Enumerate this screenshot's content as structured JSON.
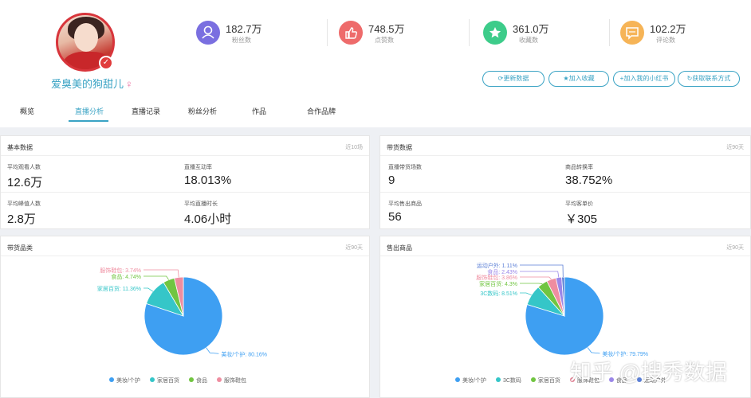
{
  "profile": {
    "name": "爱臭美的狗甜儿",
    "gender_icon": "♀",
    "verified_icon": "✓"
  },
  "stats": [
    {
      "value": "182.7万",
      "label": "粉丝数",
      "icon": "user-icon",
      "glyph": "⚇",
      "color": "#7a6fe0"
    },
    {
      "value": "748.5万",
      "label": "点赞数",
      "icon": "thumbs-up-icon",
      "glyph": "👍",
      "color": "#ee6b6b"
    },
    {
      "value": "361.0万",
      "label": "收藏数",
      "icon": "star-icon",
      "glyph": "★",
      "color": "#3dcc8a"
    },
    {
      "value": "102.2万",
      "label": "评论数",
      "icon": "comment-icon",
      "glyph": "▭",
      "color": "#f6b457"
    }
  ],
  "actions": [
    "⟳更新数据",
    "★加入收藏",
    "+加入我的小红书",
    "↻获取联系方式"
  ],
  "tabs": [
    "概览",
    "直播分析",
    "直播记录",
    "粉丝分析",
    "作品",
    "合作品牌"
  ],
  "basic": {
    "title": "基本数据",
    "range": "近10场",
    "metrics": [
      {
        "label": "平均观看人数",
        "value": "12.6万"
      },
      {
        "label": "直播互动率",
        "value": "18.013%"
      },
      {
        "label": "平均峰值人数",
        "value": "2.8万"
      },
      {
        "label": "平均直播时长",
        "value": "4.06小时"
      }
    ]
  },
  "sales": {
    "title": "带货数据",
    "range": "近90天",
    "metrics": [
      {
        "label": "直播带货场数",
        "value": "9"
      },
      {
        "label": "商品转换率",
        "value": "38.752%"
      },
      {
        "label": "平均售出商品",
        "value": "56"
      },
      {
        "label": "平均客单价",
        "value": "￥305"
      }
    ]
  },
  "category": {
    "title": "带货品类",
    "range": "近90天"
  },
  "sold": {
    "title": "售出商品",
    "range": "近90天"
  },
  "chart_data": [
    {
      "type": "pie",
      "slices": [
        {
          "name": "美妆/个护",
          "value": 80.16,
          "label": "美妆/个护: 80.16%",
          "color": "#3e9ff2"
        },
        {
          "name": "家居百货",
          "value": 11.36,
          "label": "家居百货: 11.36%",
          "color": "#35c6c8"
        },
        {
          "name": "食品",
          "value": 4.74,
          "label": "食品: 4.74%",
          "color": "#71c541"
        },
        {
          "name": "服饰鞋包",
          "value": 3.74,
          "label": "服饰鞋包: 3.74%",
          "color": "#ef8da0"
        }
      ],
      "legend": [
        "美妆/个护",
        "家居百货",
        "食品",
        "服饰鞋包"
      ]
    },
    {
      "type": "pie",
      "slices": [
        {
          "name": "美妆/个护",
          "value": 79.79,
          "label": "美妆/个护: 79.79%",
          "color": "#3e9ff2"
        },
        {
          "name": "3C数码",
          "value": 8.51,
          "label": "3C数码: 8.51%",
          "color": "#35c6c8"
        },
        {
          "name": "家居百货",
          "value": 4.3,
          "label": "家居百货: 4.3%",
          "color": "#71c541"
        },
        {
          "name": "服饰鞋包",
          "value": 3.86,
          "label": "服饰鞋包: 3.86%",
          "color": "#ef8da0"
        },
        {
          "name": "食品",
          "value": 2.43,
          "label": "食品: 2.43%",
          "color": "#9b87e8"
        },
        {
          "name": "运动户外",
          "value": 1.11,
          "label": "运动户外: 1.11%",
          "color": "#5b7fd6"
        }
      ],
      "legend": [
        "美妆/个护",
        "3C数码",
        "家居百货",
        "服饰鞋包",
        "食品",
        "运动户外"
      ]
    }
  ],
  "watermark": "知乎 @搜秀数据"
}
